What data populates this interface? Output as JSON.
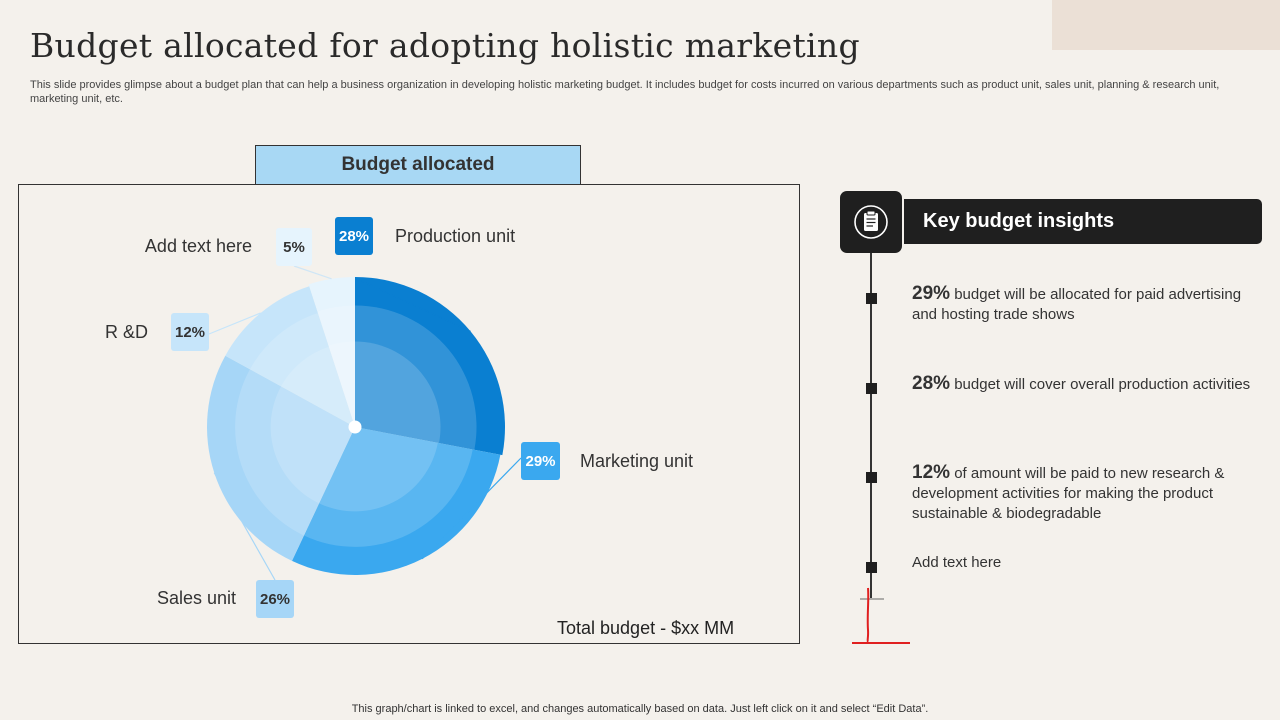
{
  "page": {
    "title": "Budget allocated for adopting holistic marketing",
    "subtitle": "This slide provides glimpse about a budget plan that can help a business organization in developing holistic marketing budget. It includes budget for costs incurred on various departments such as product unit, sales unit, planning & research unit, marketing unit, etc.",
    "footer": "This graph/chart is linked to excel,  and changes automatically based on data. Just left click on it and select “Edit Data”."
  },
  "chart_data": {
    "type": "pie",
    "title": "Budget allocated",
    "slices": [
      {
        "label": "Production unit",
        "value": 28,
        "value_label": "28%",
        "color": "#0a7fd1"
      },
      {
        "label": "Marketing unit",
        "value": 29,
        "value_label": "29%",
        "color": "#3aa8ef"
      },
      {
        "label": "Sales unit",
        "value": 26,
        "value_label": "26%",
        "color": "#a6d6f7"
      },
      {
        "label": "R &D",
        "value": 12,
        "value_label": "12%",
        "color": "#c6e5fa"
      },
      {
        "label": "Add text here",
        "value": 5,
        "value_label": "5%",
        "color": "#e6f4fd"
      }
    ],
    "start_angle_deg": 0,
    "direction": "clockwise",
    "annotation": "Total budget - $xx MM"
  },
  "insights": {
    "header": "Key budget insights",
    "icon": "clipboard-icon",
    "items": [
      {
        "pct": "29%",
        "text": " budget will be allocated for paid advertising and hosting trade shows"
      },
      {
        "pct": "28%",
        "text": " budget will cover overall production activities"
      },
      {
        "pct": "12%",
        "text": " of amount will be paid to new research & development activities for making the product sustainable & biodegradable"
      },
      {
        "pct": "",
        "text": "Add text here"
      }
    ]
  },
  "colors": {
    "background": "#f4f1ec",
    "header_fill": "#a8d8f4",
    "insights_dark": "#1f1f1f",
    "annotation_red": "#e02020"
  }
}
